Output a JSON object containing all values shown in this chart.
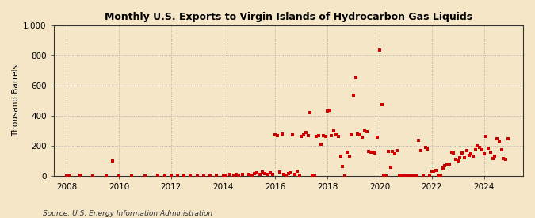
{
  "title": "Monthly U.S. Exports to Virgin Islands of Hydrocarbon Gas Liquids",
  "ylabel": "Thousand Barrels",
  "source": "Source: U.S. Energy Information Administration",
  "background_color": "#f5e6c8",
  "plot_background": "#f5e6c8",
  "marker_color": "#cc0000",
  "marker_size": 5,
  "ylim": [
    0,
    1000
  ],
  "yticks": [
    0,
    200,
    400,
    600,
    800,
    1000
  ],
  "ytick_labels": [
    "0",
    "200",
    "400",
    "600",
    "800",
    "1,000"
  ],
  "xlim_start": 2007.5,
  "xlim_end": 2025.5,
  "xticks": [
    2008,
    2010,
    2012,
    2014,
    2016,
    2018,
    2020,
    2022,
    2024
  ],
  "data": [
    [
      2008.0,
      0
    ],
    [
      2008.1,
      0
    ],
    [
      2008.5,
      2
    ],
    [
      2009.0,
      0
    ],
    [
      2009.5,
      0
    ],
    [
      2009.75,
      100
    ],
    [
      2010.0,
      0
    ],
    [
      2010.5,
      0
    ],
    [
      2011.0,
      0
    ],
    [
      2011.5,
      2
    ],
    [
      2011.75,
      0
    ],
    [
      2012.0,
      5
    ],
    [
      2012.25,
      0
    ],
    [
      2012.5,
      3
    ],
    [
      2012.75,
      0
    ],
    [
      2013.0,
      0
    ],
    [
      2013.25,
      0
    ],
    [
      2013.5,
      0
    ],
    [
      2013.75,
      5
    ],
    [
      2014.0,
      5
    ],
    [
      2014.1,
      3
    ],
    [
      2014.25,
      8
    ],
    [
      2014.4,
      5
    ],
    [
      2014.5,
      10
    ],
    [
      2014.6,
      5
    ],
    [
      2014.75,
      8
    ],
    [
      2015.0,
      10
    ],
    [
      2015.1,
      5
    ],
    [
      2015.2,
      15
    ],
    [
      2015.3,
      20
    ],
    [
      2015.4,
      10
    ],
    [
      2015.5,
      25
    ],
    [
      2015.6,
      15
    ],
    [
      2015.7,
      10
    ],
    [
      2015.8,
      20
    ],
    [
      2015.9,
      10
    ],
    [
      2016.0,
      270
    ],
    [
      2016.08,
      265
    ],
    [
      2016.16,
      25
    ],
    [
      2016.25,
      280
    ],
    [
      2016.33,
      10
    ],
    [
      2016.42,
      5
    ],
    [
      2016.5,
      15
    ],
    [
      2016.58,
      20
    ],
    [
      2016.67,
      270
    ],
    [
      2016.75,
      10
    ],
    [
      2016.83,
      30
    ],
    [
      2016.92,
      5
    ],
    [
      2017.0,
      260
    ],
    [
      2017.08,
      275
    ],
    [
      2017.16,
      290
    ],
    [
      2017.25,
      265
    ],
    [
      2017.33,
      420
    ],
    [
      2017.42,
      5
    ],
    [
      2017.5,
      0
    ],
    [
      2017.58,
      260
    ],
    [
      2017.67,
      265
    ],
    [
      2017.75,
      210
    ],
    [
      2017.83,
      265
    ],
    [
      2017.92,
      260
    ],
    [
      2018.0,
      430
    ],
    [
      2018.08,
      435
    ],
    [
      2018.16,
      265
    ],
    [
      2018.25,
      300
    ],
    [
      2018.33,
      270
    ],
    [
      2018.42,
      260
    ],
    [
      2018.5,
      130
    ],
    [
      2018.58,
      60
    ],
    [
      2018.67,
      0
    ],
    [
      2018.75,
      155
    ],
    [
      2018.83,
      130
    ],
    [
      2018.92,
      270
    ],
    [
      2019.0,
      535
    ],
    [
      2019.08,
      650
    ],
    [
      2019.16,
      280
    ],
    [
      2019.25,
      270
    ],
    [
      2019.33,
      255
    ],
    [
      2019.42,
      300
    ],
    [
      2019.5,
      295
    ],
    [
      2019.58,
      160
    ],
    [
      2019.67,
      155
    ],
    [
      2019.75,
      155
    ],
    [
      2019.83,
      150
    ],
    [
      2019.92,
      255
    ],
    [
      2020.0,
      835
    ],
    [
      2020.08,
      475
    ],
    [
      2020.16,
      5
    ],
    [
      2020.25,
      0
    ],
    [
      2020.33,
      160
    ],
    [
      2020.42,
      55
    ],
    [
      2020.5,
      160
    ],
    [
      2020.58,
      145
    ],
    [
      2020.67,
      165
    ],
    [
      2020.75,
      0
    ],
    [
      2020.83,
      0
    ],
    [
      2020.92,
      0
    ],
    [
      2021.0,
      0
    ],
    [
      2021.08,
      0
    ],
    [
      2021.16,
      0
    ],
    [
      2021.25,
      0
    ],
    [
      2021.33,
      0
    ],
    [
      2021.42,
      0
    ],
    [
      2021.5,
      235
    ],
    [
      2021.58,
      165
    ],
    [
      2021.67,
      0
    ],
    [
      2021.75,
      190
    ],
    [
      2021.83,
      180
    ],
    [
      2021.92,
      5
    ],
    [
      2022.0,
      30
    ],
    [
      2022.08,
      30
    ],
    [
      2022.16,
      35
    ],
    [
      2022.25,
      5
    ],
    [
      2022.33,
      5
    ],
    [
      2022.42,
      50
    ],
    [
      2022.5,
      65
    ],
    [
      2022.58,
      80
    ],
    [
      2022.67,
      75
    ],
    [
      2022.75,
      155
    ],
    [
      2022.83,
      150
    ],
    [
      2022.92,
      110
    ],
    [
      2023.0,
      100
    ],
    [
      2023.08,
      120
    ],
    [
      2023.16,
      150
    ],
    [
      2023.25,
      120
    ],
    [
      2023.33,
      165
    ],
    [
      2023.42,
      135
    ],
    [
      2023.5,
      145
    ],
    [
      2023.58,
      130
    ],
    [
      2023.67,
      175
    ],
    [
      2023.75,
      200
    ],
    [
      2023.83,
      190
    ],
    [
      2023.92,
      175
    ],
    [
      2024.0,
      145
    ],
    [
      2024.08,
      260
    ],
    [
      2024.16,
      185
    ],
    [
      2024.25,
      155
    ],
    [
      2024.33,
      115
    ],
    [
      2024.42,
      130
    ],
    [
      2024.5,
      245
    ],
    [
      2024.58,
      230
    ],
    [
      2024.67,
      175
    ],
    [
      2024.75,
      115
    ],
    [
      2024.83,
      110
    ],
    [
      2024.92,
      245
    ]
  ]
}
